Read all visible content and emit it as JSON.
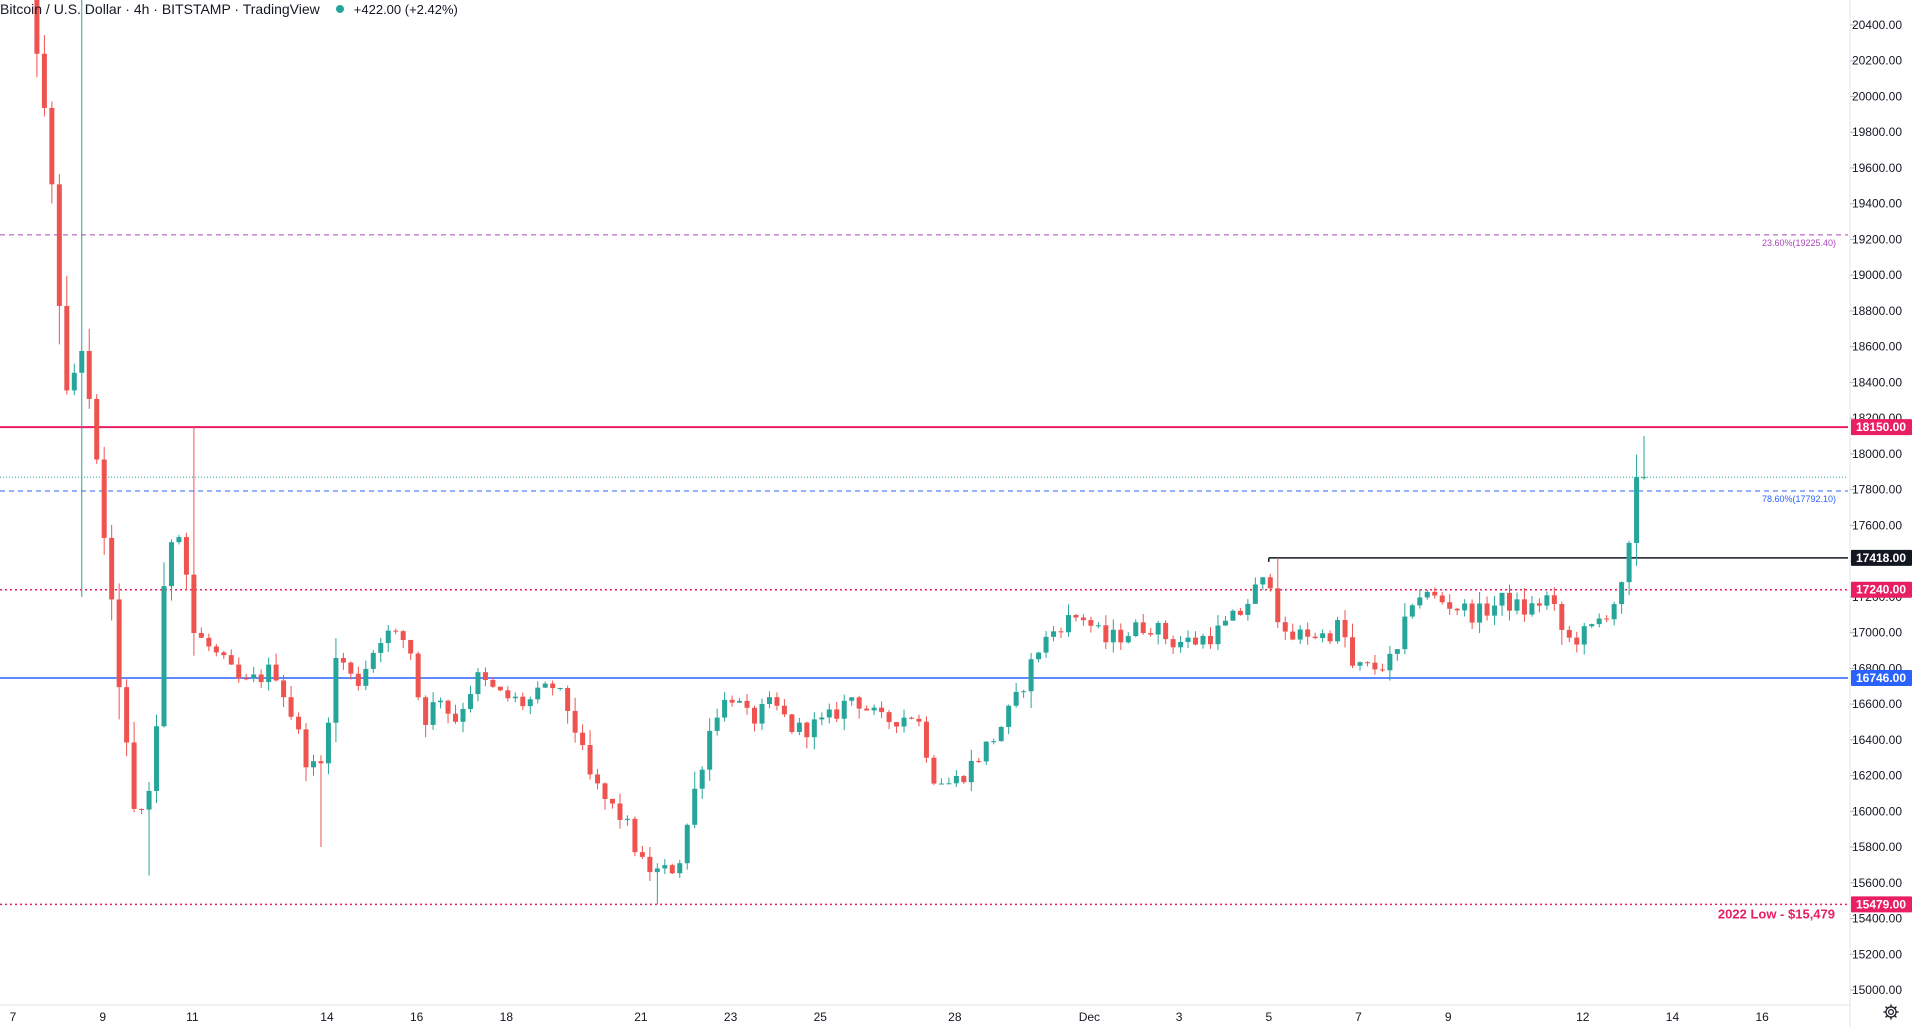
{
  "header": {
    "symbol": "Bitcoin / U.S. Dollar · 4h · BITSTAMP · TradingView",
    "change": "+422.00 (+2.42%)",
    "status_dot_color": "#26a69a"
  },
  "icons": {
    "settings": "gear-icon"
  },
  "colors": {
    "up": "#26a69a",
    "down": "#ef5350",
    "pink": "#e91e63",
    "blue": "#2962ff",
    "black": "#131722"
  },
  "chart_data": {
    "type": "candlestick",
    "ylim": [
      14880,
      20620
    ],
    "yticks": [
      "20400.00",
      "20200.00",
      "20000.00",
      "19800.00",
      "19600.00",
      "19400.00",
      "19200.00",
      "19000.00",
      "18800.00",
      "18600.00",
      "18400.00",
      "18200.00",
      "18000.00",
      "17800.00",
      "17600.00",
      "17400.00",
      "17200.00",
      "17000.00",
      "16800.00",
      "16600.00",
      "16400.00",
      "16200.00",
      "16000.00",
      "15800.00",
      "15600.00",
      "15400.00",
      "15200.00",
      "15000.00"
    ],
    "xticks": [
      {
        "label": "7",
        "day": 7
      },
      {
        "label": "9",
        "day": 9
      },
      {
        "label": "11",
        "day": 11
      },
      {
        "label": "14",
        "day": 14
      },
      {
        "label": "16",
        "day": 16
      },
      {
        "label": "18",
        "day": 18
      },
      {
        "label": "21",
        "day": 21
      },
      {
        "label": "23",
        "day": 23
      },
      {
        "label": "25",
        "day": 25
      },
      {
        "label": "28",
        "day": 28
      },
      {
        "label": "Dec",
        "day": 31
      },
      {
        "label": "3",
        "day": 33
      },
      {
        "label": "5",
        "day": 35
      },
      {
        "label": "7",
        "day": 37
      },
      {
        "label": "9",
        "day": 39
      },
      {
        "label": "12",
        "day": 42
      },
      {
        "label": "14",
        "day": 44
      },
      {
        "label": "16",
        "day": 46
      }
    ],
    "levels": [
      {
        "price": 18150,
        "label": "18150.00",
        "color": "#e91e63",
        "style": "solid"
      },
      {
        "price": 17418,
        "label": "17418.00",
        "color": "#131722",
        "style": "solid",
        "start_day": 35
      },
      {
        "price": 17240,
        "label": "17240.00",
        "color": "#e91e63",
        "style": "dotted"
      },
      {
        "price": 16746,
        "label": "16746.00",
        "color": "#2962ff",
        "style": "solid"
      },
      {
        "price": 15479,
        "label": "15479.00",
        "color": "#e91e63",
        "style": "dotted"
      }
    ],
    "fib_levels": [
      {
        "price": 19225.4,
        "text": "23.60%(19225.40)",
        "color": "#ab47bc"
      },
      {
        "price": 17792.1,
        "text": "78.60%(17792.10)",
        "color": "#2962ff"
      }
    ],
    "annotations": [
      {
        "text": "2022 Low - $15,479",
        "price": 15479,
        "color": "#e91e63"
      }
    ],
    "last_price_line": 17870,
    "anchors": [
      {
        "day": 7.2,
        "p": 21200
      },
      {
        "day": 7.6,
        "p": 20500
      },
      {
        "day": 8.0,
        "p": 19600
      },
      {
        "day": 8.35,
        "p": 18300
      },
      {
        "day": 8.7,
        "p": 18600
      },
      {
        "day": 9.1,
        "p": 17800
      },
      {
        "day": 9.5,
        "p": 16800
      },
      {
        "day": 9.9,
        "p": 15900
      },
      {
        "day": 10.3,
        "p": 16200
      },
      {
        "day": 10.6,
        "p": 17500
      },
      {
        "day": 10.9,
        "p": 17600
      },
      {
        "day": 11.2,
        "p": 17000
      },
      {
        "day": 11.6,
        "p": 16900
      },
      {
        "day": 12.3,
        "p": 16700
      },
      {
        "day": 13.0,
        "p": 16800
      },
      {
        "day": 13.3,
        "p": 16600
      },
      {
        "day": 13.7,
        "p": 16300
      },
      {
        "day": 14.0,
        "p": 16200
      },
      {
        "day": 14.4,
        "p": 16900
      },
      {
        "day": 14.8,
        "p": 16700
      },
      {
        "day": 15.4,
        "p": 17000
      },
      {
        "day": 16.0,
        "p": 16950
      },
      {
        "day": 16.3,
        "p": 16500
      },
      {
        "day": 16.7,
        "p": 16650
      },
      {
        "day": 17.0,
        "p": 16500
      },
      {
        "day": 17.5,
        "p": 16750
      },
      {
        "day": 18.0,
        "p": 16650
      },
      {
        "day": 18.6,
        "p": 16600
      },
      {
        "day": 19.2,
        "p": 16700
      },
      {
        "day": 19.6,
        "p": 16550
      },
      {
        "day": 20.0,
        "p": 16200
      },
      {
        "day": 20.4,
        "p": 16050
      },
      {
        "day": 20.8,
        "p": 15950
      },
      {
        "day": 21.2,
        "p": 15700
      },
      {
        "day": 21.6,
        "p": 15650
      },
      {
        "day": 22.0,
        "p": 15700
      },
      {
        "day": 22.4,
        "p": 16150
      },
      {
        "day": 22.8,
        "p": 16550
      },
      {
        "day": 23.2,
        "p": 16650
      },
      {
        "day": 23.6,
        "p": 16500
      },
      {
        "day": 24.1,
        "p": 16600
      },
      {
        "day": 24.6,
        "p": 16450
      },
      {
        "day": 25.3,
        "p": 16500
      },
      {
        "day": 25.9,
        "p": 16650
      },
      {
        "day": 26.5,
        "p": 16500
      },
      {
        "day": 27.3,
        "p": 16550
      },
      {
        "day": 27.7,
        "p": 16200
      },
      {
        "day": 28.1,
        "p": 16150
      },
      {
        "day": 28.5,
        "p": 16250
      },
      {
        "day": 29.0,
        "p": 16400
      },
      {
        "day": 29.5,
        "p": 16600
      },
      {
        "day": 30.0,
        "p": 16900
      },
      {
        "day": 30.5,
        "p": 17050
      },
      {
        "day": 31.0,
        "p": 17100
      },
      {
        "day": 31.5,
        "p": 16950
      },
      {
        "day": 32.0,
        "p": 17000
      },
      {
        "day": 32.5,
        "p": 17050
      },
      {
        "day": 33.0,
        "p": 16950
      },
      {
        "day": 33.5,
        "p": 16950
      },
      {
        "day": 34.0,
        "p": 17000
      },
      {
        "day": 34.5,
        "p": 17100
      },
      {
        "day": 34.9,
        "p": 17250
      },
      {
        "day": 35.2,
        "p": 17300
      },
      {
        "day": 35.5,
        "p": 16950
      },
      {
        "day": 36.0,
        "p": 17000
      },
      {
        "day": 36.4,
        "p": 16980
      },
      {
        "day": 36.8,
        "p": 17050
      },
      {
        "day": 37.0,
        "p": 16800
      },
      {
        "day": 37.5,
        "p": 16800
      },
      {
        "day": 38.0,
        "p": 16850
      },
      {
        "day": 38.4,
        "p": 17220
      },
      {
        "day": 38.8,
        "p": 17200
      },
      {
        "day": 39.3,
        "p": 17150
      },
      {
        "day": 39.8,
        "p": 17100
      },
      {
        "day": 40.4,
        "p": 17180
      },
      {
        "day": 40.9,
        "p": 17120
      },
      {
        "day": 41.4,
        "p": 17200
      },
      {
        "day": 41.8,
        "p": 16950
      },
      {
        "day": 42.3,
        "p": 17000
      },
      {
        "day": 42.8,
        "p": 17150
      },
      {
        "day": 43.1,
        "p": 17260
      },
      {
        "day": 43.4,
        "p": 17870
      }
    ]
  }
}
